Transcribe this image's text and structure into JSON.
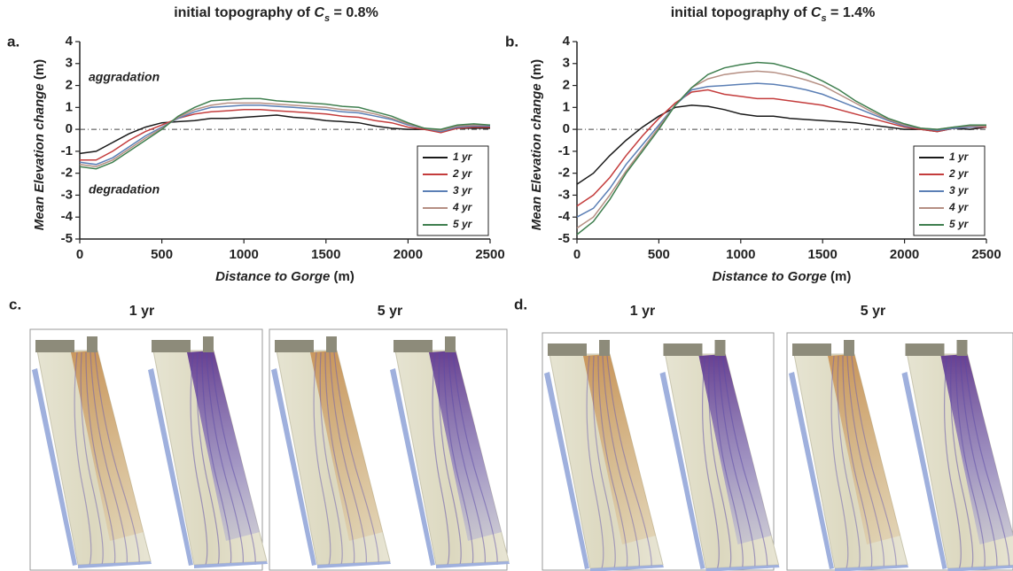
{
  "chart_data": [
    {
      "type": "line",
      "panel_label": "a.",
      "title_parts": [
        "initial topography of ",
        "C",
        "s",
        " = 0.8%"
      ],
      "x_label": [
        "Distance to Gorge",
        " (m)"
      ],
      "y_label": [
        "Mean Elevation change",
        " (m)"
      ],
      "annotations": [
        "aggradation",
        "degradation"
      ],
      "x": [
        0,
        100,
        200,
        300,
        400,
        500,
        600,
        700,
        800,
        900,
        1000,
        1100,
        1200,
        1300,
        1400,
        1500,
        1600,
        1700,
        1800,
        1900,
        2000,
        2100,
        2200,
        2300,
        2400,
        2500
      ],
      "series": [
        {
          "name": "1 yr",
          "color": "#1a1a1a",
          "values": [
            -1.1,
            -1.0,
            -0.6,
            -0.2,
            0.1,
            0.3,
            0.35,
            0.4,
            0.5,
            0.5,
            0.55,
            0.6,
            0.65,
            0.55,
            0.5,
            0.4,
            0.35,
            0.3,
            0.15,
            0.05,
            0,
            0,
            -0.1,
            0.05,
            0.05,
            0.05
          ]
        },
        {
          "name": "2 yr",
          "color": "#c43c3c",
          "values": [
            -1.4,
            -1.4,
            -1.0,
            -0.5,
            -0.1,
            0.2,
            0.5,
            0.7,
            0.8,
            0.85,
            0.9,
            0.9,
            0.85,
            0.8,
            0.75,
            0.7,
            0.6,
            0.55,
            0.4,
            0.3,
            0.1,
            0,
            -0.15,
            0.05,
            0.1,
            0.1
          ]
        },
        {
          "name": "3 yr",
          "color": "#5b7fb5",
          "values": [
            -1.5,
            -1.6,
            -1.3,
            -0.8,
            -0.3,
            0.1,
            0.5,
            0.8,
            1.0,
            1.05,
            1.1,
            1.1,
            1.05,
            1.0,
            0.95,
            0.9,
            0.8,
            0.75,
            0.6,
            0.45,
            0.2,
            0.05,
            -0.1,
            0.1,
            0.15,
            0.15
          ]
        },
        {
          "name": "4 yr",
          "color": "#b58f83",
          "values": [
            -1.6,
            -1.7,
            -1.4,
            -0.9,
            -0.4,
            0.05,
            0.55,
            0.9,
            1.1,
            1.2,
            1.2,
            1.2,
            1.15,
            1.1,
            1.05,
            1.0,
            0.9,
            0.85,
            0.7,
            0.5,
            0.25,
            0.05,
            -0.05,
            0.15,
            0.2,
            0.2
          ]
        },
        {
          "name": "5 yr",
          "color": "#3f7f4f",
          "values": [
            -1.7,
            -1.8,
            -1.5,
            -1.0,
            -0.5,
            0.0,
            0.6,
            1.0,
            1.3,
            1.35,
            1.4,
            1.4,
            1.3,
            1.25,
            1.2,
            1.15,
            1.05,
            1.0,
            0.8,
            0.6,
            0.3,
            0.05,
            0,
            0.2,
            0.25,
            0.2
          ]
        }
      ],
      "xlim": [
        0,
        2500
      ],
      "xticks": [
        0,
        500,
        1000,
        1500,
        2000,
        2500
      ],
      "ylim": [
        -5,
        4
      ],
      "yticks": [
        -5,
        -4,
        -3,
        -2,
        -1,
        0,
        1,
        2,
        3,
        4
      ],
      "reference_line": 0,
      "legend": "lower right"
    },
    {
      "type": "line",
      "panel_label": "b.",
      "title_parts": [
        "initial topography of ",
        "C",
        "s",
        " = 1.4%"
      ],
      "x_label": [
        "Distance to Gorge",
        " (m)"
      ],
      "y_label": [
        "Mean Elevation change",
        " (m)"
      ],
      "x": [
        0,
        100,
        200,
        300,
        400,
        500,
        600,
        700,
        800,
        900,
        1000,
        1100,
        1200,
        1300,
        1400,
        1500,
        1600,
        1700,
        1800,
        1900,
        2000,
        2100,
        2200,
        2300,
        2400,
        2500
      ],
      "series": [
        {
          "name": "1 yr",
          "color": "#1a1a1a",
          "values": [
            -2.5,
            -2.0,
            -1.2,
            -0.5,
            0.1,
            0.6,
            1.0,
            1.1,
            1.05,
            0.9,
            0.7,
            0.6,
            0.6,
            0.5,
            0.45,
            0.4,
            0.35,
            0.3,
            0.2,
            0.1,
            0.0,
            0.0,
            -0.1,
            0.05,
            0.0,
            0.1
          ]
        },
        {
          "name": "2 yr",
          "color": "#c43c3c",
          "values": [
            -3.5,
            -3.0,
            -2.2,
            -1.2,
            -0.3,
            0.5,
            1.2,
            1.7,
            1.8,
            1.6,
            1.5,
            1.4,
            1.4,
            1.3,
            1.2,
            1.1,
            0.9,
            0.7,
            0.5,
            0.3,
            0.1,
            0,
            -0.1,
            0.05,
            0.1,
            0.1
          ]
        },
        {
          "name": "3 yr",
          "color": "#5b7fb5",
          "values": [
            -4.0,
            -3.6,
            -2.7,
            -1.6,
            -0.7,
            0.2,
            1.1,
            1.8,
            1.95,
            2.0,
            2.05,
            2.1,
            2.05,
            1.95,
            1.8,
            1.6,
            1.3,
            1.0,
            0.7,
            0.4,
            0.15,
            0.05,
            -0.05,
            0.05,
            0.1,
            0.15
          ]
        },
        {
          "name": "4 yr",
          "color": "#b58f83",
          "values": [
            -4.5,
            -4.0,
            -3.0,
            -1.9,
            -0.9,
            0.1,
            1.1,
            1.9,
            2.3,
            2.5,
            2.6,
            2.65,
            2.6,
            2.45,
            2.25,
            2.0,
            1.6,
            1.2,
            0.8,
            0.45,
            0.2,
            0.05,
            0,
            0.1,
            0.15,
            0.15
          ]
        },
        {
          "name": "5 yr",
          "color": "#3f7f4f",
          "values": [
            -4.8,
            -4.2,
            -3.2,
            -2.0,
            -1.0,
            0.0,
            1.1,
            1.9,
            2.5,
            2.8,
            2.95,
            3.05,
            3.0,
            2.8,
            2.55,
            2.2,
            1.8,
            1.3,
            0.9,
            0.5,
            0.25,
            0.05,
            0,
            0.1,
            0.2,
            0.2
          ]
        }
      ],
      "xlim": [
        0,
        2500
      ],
      "xticks": [
        0,
        500,
        1000,
        1500,
        2000,
        2500
      ],
      "ylim": [
        -5,
        4
      ],
      "yticks": [
        -5,
        -4,
        -3,
        -2,
        -1,
        0,
        1,
        2,
        3,
        4
      ],
      "reference_line": 0,
      "legend": "lower right"
    }
  ],
  "image_panels": [
    {
      "label": "c.",
      "captions": [
        "1 yr",
        "5 yr"
      ]
    },
    {
      "label": "d.",
      "captions": [
        "1 yr",
        "5 yr"
      ]
    }
  ]
}
